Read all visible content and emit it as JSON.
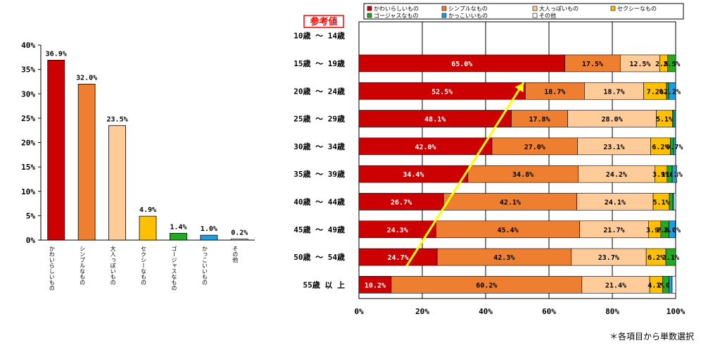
{
  "reference_tag": "参考値",
  "footnote": "＊各項目から単数選択",
  "colors": {
    "series": [
      "#cc0000",
      "#ee7f30",
      "#ffcc99",
      "#ffc000",
      "#22aa22",
      "#1e9ee0",
      "#ffffff"
    ],
    "arrow": "#ffff00",
    "tag_border": "#ff0000",
    "tag_text": "#ff0000"
  },
  "chart_data": [
    {
      "type": "bar",
      "categories": [
        "かわいらしいもの",
        "シンプルなもの",
        "大人っぽいもの",
        "セクシーなもの",
        "ゴージャスなもの",
        "かっこいいもの",
        "その他"
      ],
      "values": [
        36.9,
        32.0,
        23.5,
        4.9,
        1.4,
        1.0,
        0.2
      ],
      "value_labels": [
        "36.9%",
        "32.0%",
        "23.5%",
        "4.9%",
        "1.4%",
        "1.0%",
        "0.2%"
      ],
      "ylim": [
        0,
        40
      ],
      "yticks": [
        "0%",
        "5%",
        "10%",
        "15%",
        "20%",
        "25%",
        "30%",
        "35%",
        "40%"
      ],
      "grid": false
    },
    {
      "type": "bar",
      "stacked": true,
      "orientation": "horizontal",
      "legend_position": "top",
      "legend": [
        "かわいらしいもの",
        "シンプルなもの",
        "大人っぽいもの",
        "セクシーなもの",
        "ゴージャスなもの",
        "かっこいいもの",
        "その他"
      ],
      "categories": [
        "10歳 ～ 14歳",
        "15歳 ～ 19歳",
        "20歳 ～ 24歳",
        "25歳 ～ 29歳",
        "30歳 ～ 34歳",
        "35歳 ～ 39歳",
        "40歳 ～ 44歳",
        "45歳 ～ 49歳",
        "50歳 ～ 54歳",
        "55歳 以 上"
      ],
      "xticks": [
        "0%",
        "20%",
        "40%",
        "60%",
        "80%",
        "100%"
      ],
      "xlim": [
        0,
        100
      ],
      "grid": true,
      "series": [
        {
          "name": "かわいらしいもの",
          "values": [
            null,
            65.0,
            52.5,
            48.1,
            42.0,
            34.4,
            26.7,
            24.3,
            24.7,
            10.2
          ]
        },
        {
          "name": "シンプルなもの",
          "values": [
            null,
            17.5,
            18.7,
            17.8,
            27.0,
            34.8,
            42.1,
            45.4,
            42.3,
            60.2
          ]
        },
        {
          "name": "大人っぽいもの",
          "values": [
            null,
            12.5,
            18.7,
            28.0,
            23.1,
            24.2,
            24.1,
            21.7,
            23.7,
            21.4
          ]
        },
        {
          "name": "セクシーなもの",
          "values": [
            null,
            2.5,
            7.2,
            5.1,
            6.2,
            3.9,
            5.1,
            3.9,
            6.2,
            4.1
          ]
        },
        {
          "name": "ゴージャスなもの",
          "values": [
            null,
            2.5,
            0.7,
            0.5,
            1.0,
            1.6,
            1.0,
            2.6,
            3.1,
            2.0
          ]
        },
        {
          "name": "かっこいいもの",
          "values": [
            null,
            0.0,
            2.2,
            0.5,
            0.7,
            1.2,
            0.5,
            2.0,
            0.0,
            1.0
          ]
        },
        {
          "name": "その他",
          "values": [
            null,
            0.0,
            0.0,
            0.0,
            0.0,
            0.3,
            0.5,
            0.1,
            0.0,
            1.1
          ]
        }
      ],
      "segment_labels": [
        [
          null,
          null,
          null,
          null,
          null,
          null,
          null
        ],
        [
          "65.0%",
          "17.5%",
          "12.5%",
          "2.5%",
          "2.5%",
          null,
          null
        ],
        [
          "52.5%",
          "18.7%",
          "18.7%",
          "7.2%",
          "0.7%",
          "2.2%",
          null
        ],
        [
          "48.1%",
          "17.8%",
          "28.0%",
          "5.1%",
          null,
          null,
          null
        ],
        [
          "42.0%",
          "27.0%",
          "23.1%",
          "6.2%",
          null,
          "0.7%",
          null
        ],
        [
          "34.4%",
          "34.8%",
          "24.2%",
          "3.9%",
          "1.6%",
          "1.2%",
          null
        ],
        [
          "26.7%",
          "42.1%",
          "24.1%",
          "5.1%",
          null,
          null,
          null
        ],
        [
          "24.3%",
          "45.4%",
          "21.7%",
          "3.9%",
          "2.6%",
          "2.0%",
          null
        ],
        [
          "24.7%",
          "42.3%",
          "23.7%",
          "6.2%",
          "3.1%",
          null,
          null
        ],
        [
          "10.2%",
          "60.2%",
          "21.4%",
          "4.1%",
          "2.0%",
          null,
          null
        ]
      ],
      "trend_arrow": {
        "from": {
          "category": "50歳 ～ 54歳",
          "x": 15
        },
        "to": {
          "category": "20歳 ～ 24歳",
          "x": 52
        }
      }
    }
  ]
}
